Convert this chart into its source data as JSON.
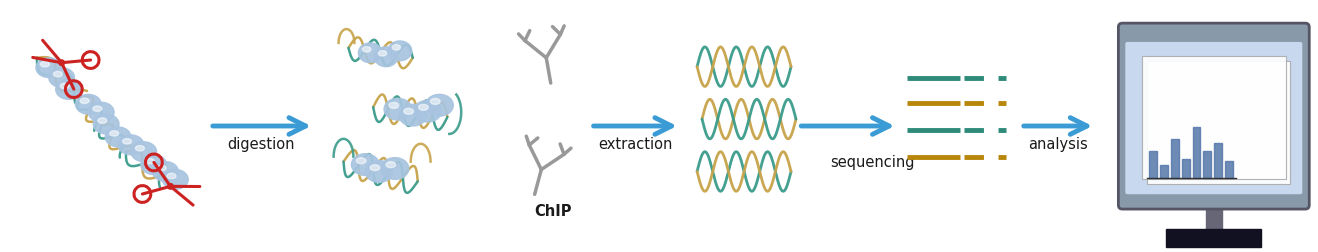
{
  "bg_color": "#ffffff",
  "arrow_color": "#3A9BD5",
  "text_color": "#1a1a1a",
  "dna_color1": "#C8A44A",
  "dna_color2": "#3A9B8A",
  "seq_olive": "#B8860B",
  "seq_teal": "#2E8B7A",
  "nucleosome_color": "#A8C4E0",
  "nucleosome_highlight": "#d6e8f7",
  "scissors_color": "#CC2222",
  "antibody_color": "#999999",
  "monitor_frame": "#445577",
  "monitor_screen": "#C8D8EE",
  "monitor_dark": "#333333",
  "monitor_base": "#111111",
  "bar_color": "#5577AA",
  "labels": [
    "digestion",
    "ChIP",
    "extraction",
    "sequencing",
    "analysis"
  ],
  "figsize": [
    13.18,
    2.52
  ],
  "dpi": 100
}
